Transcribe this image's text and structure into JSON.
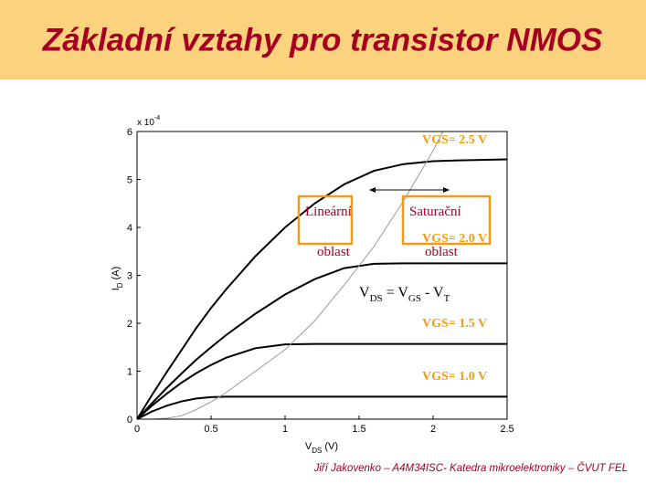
{
  "header": {
    "title": "Základní vztahy pro transistor NMOS"
  },
  "footer": "Jiří Jakovenko – A4M34ISC- Katedra mikroelektroniky – ČVUT FEL",
  "chart_data": {
    "type": "line",
    "x_label": {
      "main": "V",
      "sub": "DS",
      "unit": "(V)"
    },
    "y_label": {
      "main": "I",
      "sub": "D",
      "unit": "(A)"
    },
    "y_multiplier": {
      "base": "x 10",
      "exponent": "-4"
    },
    "x": [
      0,
      0.1,
      0.2,
      0.3,
      0.4,
      0.5,
      0.6,
      0.8,
      1.0,
      1.2,
      1.4,
      1.6,
      1.8,
      2.0,
      2.2,
      2.5
    ],
    "xlim": [
      0,
      2.5
    ],
    "xticks": [
      0,
      0.5,
      1,
      1.5,
      2,
      2.5
    ],
    "ylim": [
      0,
      6
    ],
    "yticks": [
      0,
      1,
      2,
      3,
      4,
      5,
      6
    ],
    "label_color": "#f39c12",
    "series": [
      {
        "name": "VGS= 2.5 V",
        "color": "#000000",
        "values": [
          0,
          0.5,
          0.98,
          1.44,
          1.9,
          2.32,
          2.7,
          3.4,
          4.0,
          4.5,
          4.9,
          5.18,
          5.32,
          5.38,
          5.4,
          5.42
        ]
      },
      {
        "name": "VGS= 2.0 V",
        "color": "#000000",
        "values": [
          0,
          0.33,
          0.65,
          0.95,
          1.24,
          1.5,
          1.75,
          2.2,
          2.6,
          2.92,
          3.15,
          3.24,
          3.25,
          3.25,
          3.25,
          3.25
        ]
      },
      {
        "name": "VGS= 1.5 V",
        "color": "#000000",
        "values": [
          0,
          0.28,
          0.53,
          0.76,
          0.96,
          1.13,
          1.28,
          1.48,
          1.56,
          1.57,
          1.57,
          1.57,
          1.57,
          1.57,
          1.57,
          1.57
        ]
      },
      {
        "name": "VGS= 1.0 V",
        "color": "#000000",
        "values": [
          0,
          0.16,
          0.28,
          0.37,
          0.43,
          0.46,
          0.47,
          0.47,
          0.47,
          0.47,
          0.47,
          0.47,
          0.47,
          0.47,
          0.47,
          0.47
        ]
      },
      {
        "color": "#999999",
        "values": [
          0,
          0,
          0.02,
          0.07,
          0.2,
          0.36,
          0.55,
          1.0,
          1.45,
          2.05,
          2.8,
          3.6,
          4.55,
          5.6,
          6.8,
          null
        ]
      }
    ],
    "annotations": {
      "linear": [
        "Lineární",
        "oblast"
      ],
      "saturation": [
        "Saturační",
        "oblast"
      ],
      "equation": [
        "V",
        "DS",
        " = V",
        "GS",
        " - V",
        "T"
      ]
    }
  }
}
